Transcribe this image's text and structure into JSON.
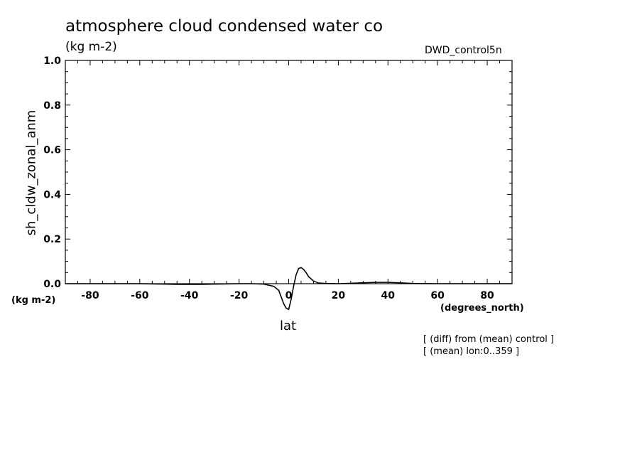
{
  "chart_data": {
    "type": "line",
    "title": "atmosphere cloud condensed water co",
    "units": "(kg m-2)",
    "dataset": "DWD_control5n",
    "xlabel": "lat",
    "xunits": "(degrees_north)",
    "ylabel": "sh_cldw_zonal_anm",
    "yunits": "(kg m-2)",
    "xlim": [
      -90,
      90
    ],
    "ylim": [
      0.0,
      1.0
    ],
    "xticks": [
      "-80",
      "-60",
      "-40",
      "-20",
      "0",
      "20",
      "40",
      "60",
      "80"
    ],
    "yticks": [
      "0.0",
      "0.2",
      "0.4",
      "0.6",
      "0.8",
      "1.0"
    ],
    "grid": false,
    "notes": [
      "[ (diff) from (mean) control ]",
      "[ (mean) lon:0..359 ]"
    ],
    "series": [
      {
        "x": [
          -90,
          -80,
          -70,
          -60,
          -55,
          -50,
          -45,
          -40,
          -35,
          -30,
          -25,
          -20,
          -15,
          -10,
          -6,
          -4,
          -3,
          -2,
          -1,
          0,
          1,
          2,
          3,
          4,
          5,
          6,
          7,
          8,
          10,
          12,
          15,
          20,
          25,
          30,
          35,
          40,
          45,
          50,
          60,
          70,
          80,
          90
        ],
        "y": [
          0.0,
          0.0,
          0.0,
          0.0,
          -0.001,
          -0.002,
          -0.003,
          -0.003,
          -0.003,
          -0.002,
          -0.001,
          0.0,
          0.0,
          -0.002,
          -0.012,
          -0.03,
          -0.06,
          -0.09,
          -0.11,
          -0.115,
          -0.07,
          -0.01,
          0.04,
          0.068,
          0.072,
          0.064,
          0.05,
          0.032,
          0.012,
          0.003,
          0.001,
          0.0,
          0.002,
          0.004,
          0.006,
          0.006,
          0.004,
          0.001,
          0.0,
          0.0,
          0.0,
          0.0
        ]
      }
    ]
  }
}
